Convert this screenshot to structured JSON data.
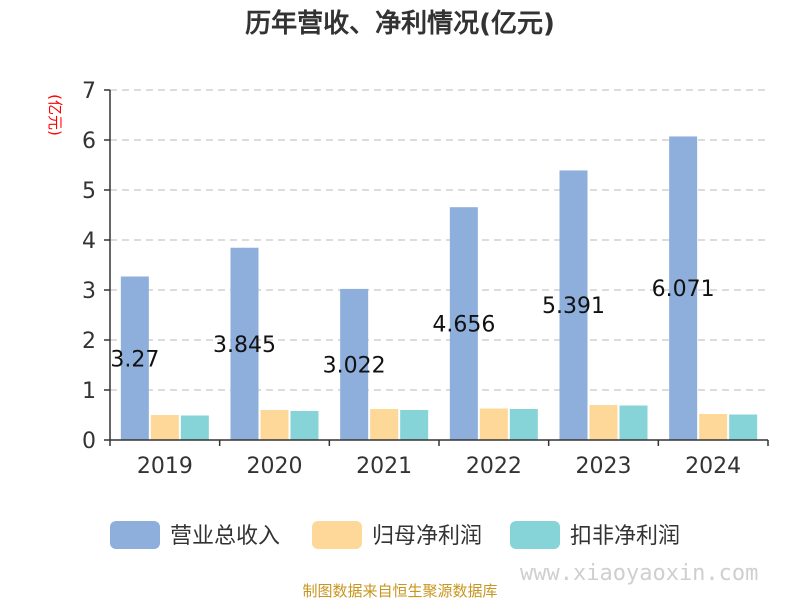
{
  "chart_data": {
    "type": "bar",
    "title": "历年营收、净利情况(亿元)",
    "ylabel": "(亿元)",
    "categories": [
      "2019",
      "2020",
      "2021",
      "2022",
      "2023",
      "2024"
    ],
    "ylim": [
      0,
      7
    ],
    "yticks": [
      "0",
      "1",
      "2",
      "3",
      "4",
      "5",
      "6",
      "7"
    ],
    "grid": true,
    "legend_position": "bottom",
    "series": [
      {
        "name": "营业总收入",
        "color": "#8eaedb",
        "values": [
          3.27,
          3.845,
          3.022,
          4.656,
          5.391,
          6.071
        ],
        "labels": [
          "3.27",
          "3.845",
          "3.022",
          "4.656",
          "5.391",
          "6.071"
        ]
      },
      {
        "name": "归母净利润",
        "color": "#fdd898",
        "values": [
          0.5,
          0.6,
          0.62,
          0.63,
          0.7,
          0.52
        ]
      },
      {
        "name": "扣非净利润",
        "color": "#86d4d7",
        "values": [
          0.49,
          0.58,
          0.6,
          0.62,
          0.69,
          0.51
        ]
      }
    ]
  },
  "footer": {
    "source": "制图数据来自恒生聚源数据库",
    "watermark": "www.xiaoyaoxin.com"
  }
}
